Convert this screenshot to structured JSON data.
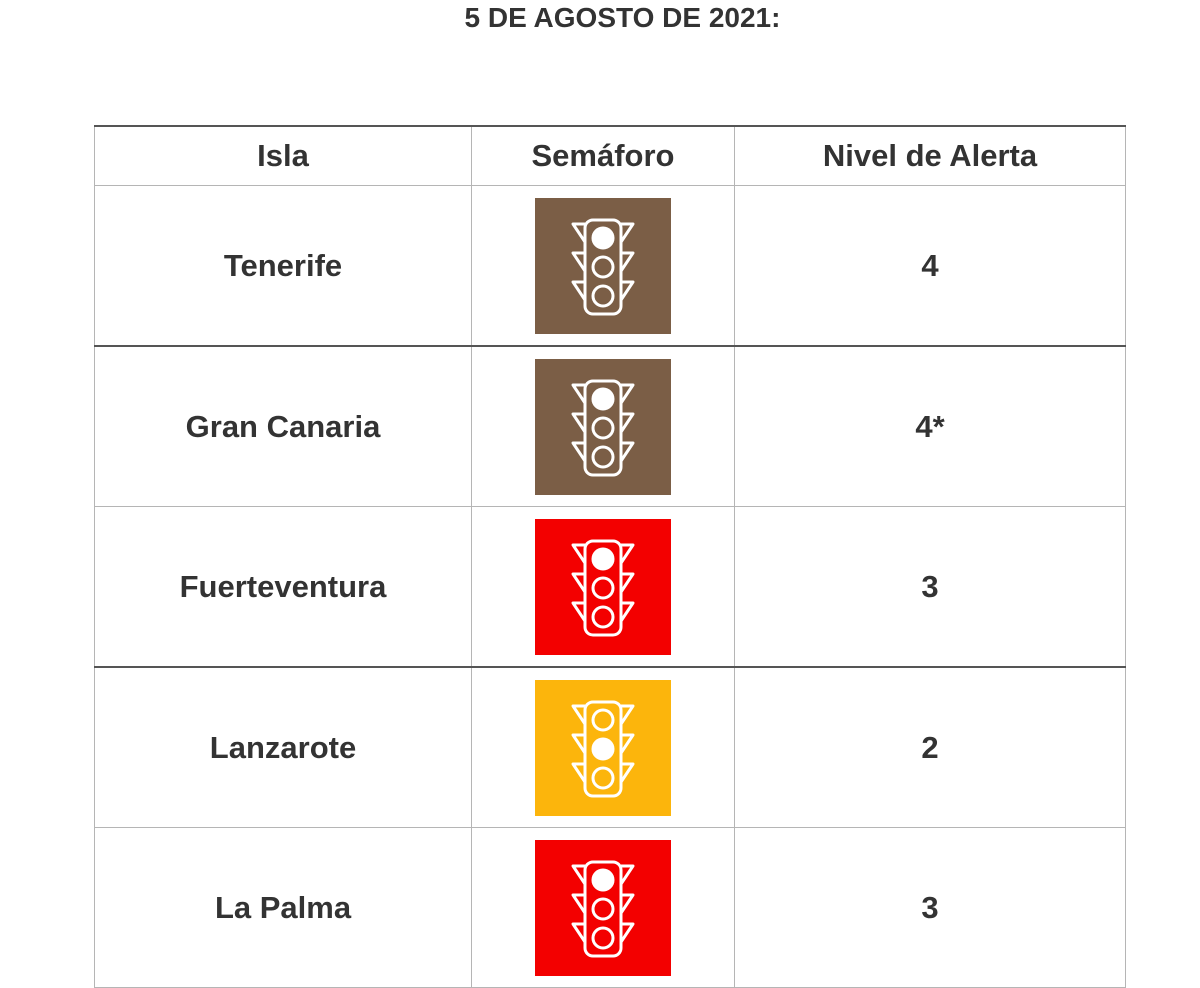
{
  "title": "5 DE AGOSTO DE 2021:",
  "table": {
    "header": [
      "Isla",
      "Semáforo",
      "Nivel de Alerta"
    ],
    "rows": [
      [
        "Tenerife",
        "4"
      ],
      [
        "Gran Canaria",
        "4*"
      ],
      [
        "Fuerteventura",
        "3"
      ],
      [
        "Lanzarote",
        "2"
      ],
      [
        "La Palma",
        "3"
      ]
    ]
  }
}
